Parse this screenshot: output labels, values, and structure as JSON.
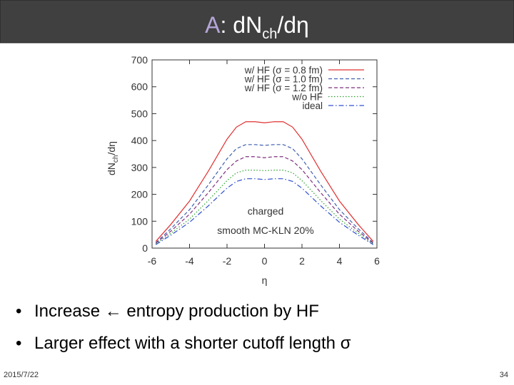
{
  "header": {
    "title_prefix": "A",
    "title_main": ": dN",
    "title_sub": "ch",
    "title_end": "/dη"
  },
  "chart_data": {
    "type": "line",
    "y_label_main": "dN",
    "y_label_sub": "ch",
    "y_label_end": "/dη",
    "x_label": "η",
    "annotations": [
      "charged",
      "smooth MC-KLN 20%"
    ],
    "x": [
      -5.8,
      -5,
      -4,
      -3,
      -2,
      -1.5,
      -1,
      -0.5,
      0,
      0.5,
      1,
      1.5,
      2,
      3,
      4,
      5,
      5.8
    ],
    "series": [
      {
        "name": "w/ HF (σ = 0.8 fm)",
        "color": "#e03030",
        "dash": "solid",
        "values": [
          25,
          88,
          175,
          286,
          405,
          450,
          470,
          470,
          466,
          470,
          470,
          450,
          405,
          286,
          175,
          88,
          25
        ]
      },
      {
        "name": "w/ HF (σ = 1.0 fm)",
        "color": "#4060b0",
        "dash": "dashed",
        "values": [
          20,
          72,
          143,
          235,
          332,
          370,
          385,
          385,
          382,
          385,
          385,
          370,
          332,
          235,
          143,
          72,
          20
        ]
      },
      {
        "name": "w/ HF (σ = 1.2 fm)",
        "color": "#803080",
        "dash": "dashed",
        "values": [
          18,
          63,
          126,
          206,
          292,
          324,
          340,
          340,
          336,
          340,
          340,
          324,
          292,
          206,
          126,
          63,
          18
        ]
      },
      {
        "name": "w/o HF",
        "color": "#30a030",
        "dash": "dotted",
        "values": [
          15,
          55,
          108,
          177,
          251,
          280,
          290,
          290,
          288,
          290,
          290,
          280,
          251,
          177,
          108,
          55,
          15
        ]
      },
      {
        "name": "ideal",
        "color": "#3050d0",
        "dash": "dashdot",
        "values": [
          13,
          48,
          96,
          157,
          223,
          248,
          258,
          258,
          255,
          258,
          258,
          248,
          223,
          157,
          96,
          48,
          13
        ]
      }
    ],
    "xlim": [
      -6,
      6
    ],
    "xticks": [
      -6,
      -4,
      -2,
      0,
      2,
      4,
      6
    ],
    "ylim": [
      0,
      700
    ],
    "yticks": [
      0,
      100,
      200,
      300,
      400,
      500,
      600,
      700
    ]
  },
  "bullets": [
    "Increase ← entropy production by HF",
    "Larger effect with a shorter cutoff length σ"
  ],
  "footer": {
    "date": "2015/7/22",
    "page": "34"
  }
}
